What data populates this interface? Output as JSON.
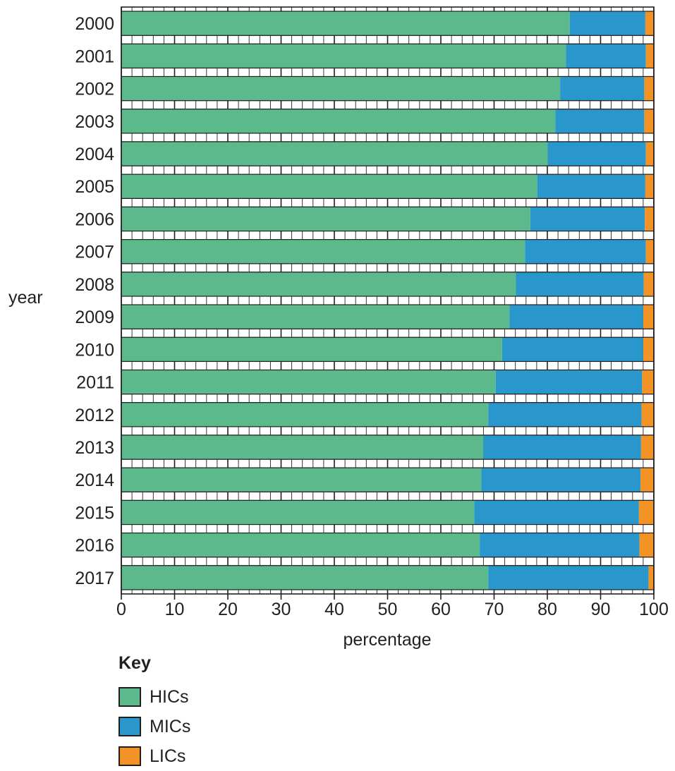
{
  "chart_data": {
    "type": "bar",
    "orientation": "horizontal",
    "stacked": true,
    "categories": [
      "2000",
      "2001",
      "2002",
      "2003",
      "2004",
      "2005",
      "2006",
      "2007",
      "2008",
      "2009",
      "2010",
      "2011",
      "2012",
      "2013",
      "2014",
      "2015",
      "2016",
      "2017"
    ],
    "series": [
      {
        "name": "HICs",
        "color": "#5cb98b",
        "values": [
          84.2,
          83.5,
          82.4,
          81.5,
          80.1,
          78.1,
          76.8,
          75.8,
          74.1,
          72.9,
          71.5,
          70.3,
          68.9,
          68.0,
          67.6,
          66.3,
          67.3,
          68.9
        ]
      },
      {
        "name": "MICs",
        "color": "#2a97cc",
        "values": [
          14.2,
          15.0,
          15.8,
          16.7,
          18.4,
          20.3,
          21.5,
          22.7,
          24.0,
          25.1,
          26.5,
          27.5,
          28.8,
          29.6,
          29.9,
          30.9,
          30.0,
          30.1
        ]
      },
      {
        "name": "LICs",
        "color": "#f39325",
        "values": [
          1.6,
          1.5,
          1.8,
          1.8,
          1.5,
          1.6,
          1.7,
          1.5,
          1.9,
          2.0,
          2.0,
          2.2,
          2.3,
          2.4,
          2.5,
          2.8,
          2.7,
          1.0
        ]
      }
    ],
    "xlabel": "percentage",
    "ylabel": "year",
    "xlim": [
      0,
      100
    ],
    "xticks": [
      "0",
      "10",
      "20",
      "30",
      "40",
      "50",
      "60",
      "70",
      "80",
      "90",
      "100"
    ],
    "grid": true
  },
  "legend": {
    "title": "Key",
    "items": [
      {
        "label": "HICs",
        "color": "#5cb98b"
      },
      {
        "label": "MICs",
        "color": "#2a97cc"
      },
      {
        "label": "LICs",
        "color": "#f39325"
      }
    ]
  }
}
